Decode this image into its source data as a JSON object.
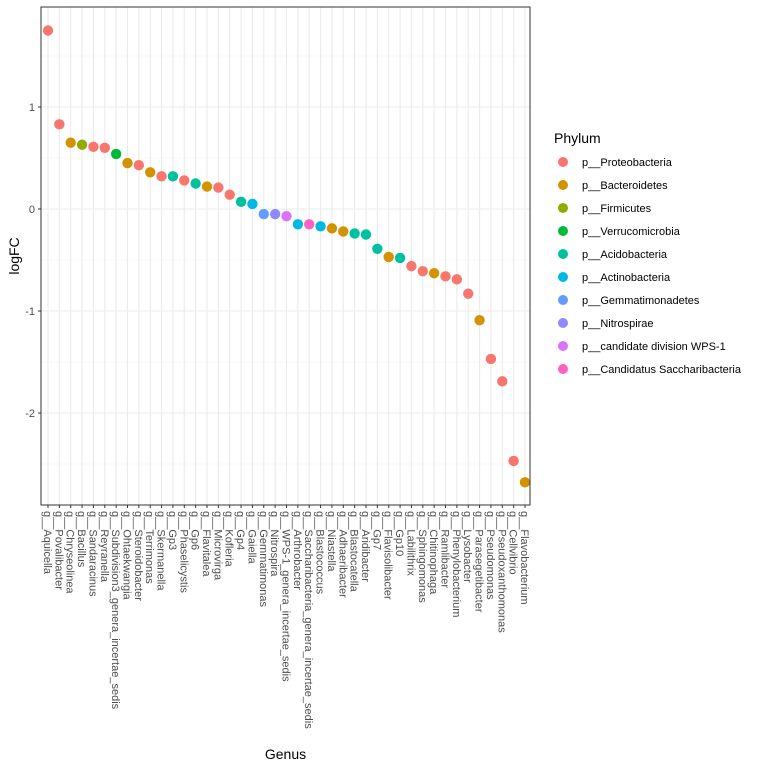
{
  "chart_data": {
    "type": "scatter",
    "title": "",
    "xlabel": "Genus",
    "ylabel": "logFC",
    "ylim": [
      -2.85,
      1.97
    ],
    "yticks": [
      -2,
      -1,
      0,
      1
    ],
    "grid": true,
    "legend": {
      "title": "Phylum",
      "position": "right",
      "entries": [
        {
          "label": "p__Proteobacteria",
          "color": "#F8766D"
        },
        {
          "label": "p__Bacteroidetes",
          "color": "#D39200"
        },
        {
          "label": "p__Firmicutes",
          "color": "#93AA00"
        },
        {
          "label": "p__Verrucomicrobia",
          "color": "#00BA38"
        },
        {
          "label": "p__Acidobacteria",
          "color": "#00C19F"
        },
        {
          "label": "p__Actinobacteria",
          "color": "#00B9E3"
        },
        {
          "label": "p__Gemmatimonadetes",
          "color": "#619CFF"
        },
        {
          "label": "p__Nitrospirae",
          "color": "#8F8AFF"
        },
        {
          "label": "p__candidate division WPS-1",
          "color": "#DB72FB"
        },
        {
          "label": "p__Candidatus Saccharibacteria",
          "color": "#FF61C3"
        }
      ]
    },
    "points": [
      {
        "genus": "g__Aquicella",
        "logFC": 1.75,
        "phylum": "p__Proteobacteria"
      },
      {
        "genus": "g__Povalibacter",
        "logFC": 0.83,
        "phylum": "p__Proteobacteria"
      },
      {
        "genus": "g__Chryseolinea",
        "logFC": 0.65,
        "phylum": "p__Bacteroidetes"
      },
      {
        "genus": "g__Bacillus",
        "logFC": 0.63,
        "phylum": "p__Firmicutes"
      },
      {
        "genus": "g__Sandaracinus",
        "logFC": 0.61,
        "phylum": "p__Proteobacteria"
      },
      {
        "genus": "g__Reyranella",
        "logFC": 0.6,
        "phylum": "p__Proteobacteria"
      },
      {
        "genus": "g__Subdivision3_genera_incertae_sedis",
        "logFC": 0.54,
        "phylum": "p__Verrucomicrobia"
      },
      {
        "genus": "g__Ohtaekwangia",
        "logFC": 0.45,
        "phylum": "p__Bacteroidetes"
      },
      {
        "genus": "g__Steroidobacter",
        "logFC": 0.43,
        "phylum": "p__Proteobacteria"
      },
      {
        "genus": "g__Terrimonas",
        "logFC": 0.36,
        "phylum": "p__Bacteroidetes"
      },
      {
        "genus": "g__Skermanella",
        "logFC": 0.32,
        "phylum": "p__Proteobacteria"
      },
      {
        "genus": "g__Gp3",
        "logFC": 0.32,
        "phylum": "p__Acidobacteria"
      },
      {
        "genus": "g__Phaselicystis",
        "logFC": 0.28,
        "phylum": "p__Proteobacteria"
      },
      {
        "genus": "g__Gp6",
        "logFC": 0.25,
        "phylum": "p__Acidobacteria"
      },
      {
        "genus": "g__Flavitalea",
        "logFC": 0.22,
        "phylum": "p__Bacteroidetes"
      },
      {
        "genus": "g__Microvirga",
        "logFC": 0.21,
        "phylum": "p__Proteobacteria"
      },
      {
        "genus": "g__Kofleria",
        "logFC": 0.14,
        "phylum": "p__Proteobacteria"
      },
      {
        "genus": "g__Gp4",
        "logFC": 0.07,
        "phylum": "p__Acidobacteria"
      },
      {
        "genus": "g__Gaiella",
        "logFC": 0.05,
        "phylum": "p__Actinobacteria"
      },
      {
        "genus": "g__Gemmatimonas",
        "logFC": -0.05,
        "phylum": "p__Gemmatimonadetes"
      },
      {
        "genus": "g__Nitrospira",
        "logFC": -0.05,
        "phylum": "p__Nitrospirae"
      },
      {
        "genus": "g__WPS-1_genera_incertae_sedis",
        "logFC": -0.07,
        "phylum": "p__candidate division WPS-1"
      },
      {
        "genus": "g__Arthrobacter",
        "logFC": -0.15,
        "phylum": "p__Actinobacteria"
      },
      {
        "genus": "g__Saccharibacteria_genera_incertae_sedis",
        "logFC": -0.15,
        "phylum": "p__Candidatus Saccharibacteria"
      },
      {
        "genus": "g__Blastococcus",
        "logFC": -0.17,
        "phylum": "p__Actinobacteria"
      },
      {
        "genus": "g__Niastella",
        "logFC": -0.19,
        "phylum": "p__Bacteroidetes"
      },
      {
        "genus": "g__Adhaeribacter",
        "logFC": -0.22,
        "phylum": "p__Bacteroidetes"
      },
      {
        "genus": "g__Blastocatella",
        "logFC": -0.24,
        "phylum": "p__Acidobacteria"
      },
      {
        "genus": "g__Aridibacter",
        "logFC": -0.25,
        "phylum": "p__Acidobacteria"
      },
      {
        "genus": "g__Gp7",
        "logFC": -0.39,
        "phylum": "p__Acidobacteria"
      },
      {
        "genus": "g__Flavisolibacter",
        "logFC": -0.47,
        "phylum": "p__Bacteroidetes"
      },
      {
        "genus": "g__Gp10",
        "logFC": -0.48,
        "phylum": "p__Acidobacteria"
      },
      {
        "genus": "g__Labilithrix",
        "logFC": -0.56,
        "phylum": "p__Proteobacteria"
      },
      {
        "genus": "g__Sphingomonas",
        "logFC": -0.61,
        "phylum": "p__Proteobacteria"
      },
      {
        "genus": "g__Chitinophaga",
        "logFC": -0.63,
        "phylum": "p__Bacteroidetes"
      },
      {
        "genus": "g__Ramlibacter",
        "logFC": -0.66,
        "phylum": "p__Proteobacteria"
      },
      {
        "genus": "g__Phenylobacterium",
        "logFC": -0.69,
        "phylum": "p__Proteobacteria"
      },
      {
        "genus": "g__Lysobacter",
        "logFC": -0.83,
        "phylum": "p__Proteobacteria"
      },
      {
        "genus": "g__Parasegetibacter",
        "logFC": -1.09,
        "phylum": "p__Bacteroidetes"
      },
      {
        "genus": "g__Pseudomonas",
        "logFC": -1.47,
        "phylum": "p__Proteobacteria"
      },
      {
        "genus": "g__Pseudoxanthomonas",
        "logFC": -1.69,
        "phylum": "p__Proteobacteria"
      },
      {
        "genus": "g__Cellvibrio",
        "logFC": -2.47,
        "phylum": "p__Proteobacteria"
      },
      {
        "genus": "g__Flavobacterium",
        "logFC": -2.68,
        "phylum": "p__Bacteroidetes"
      }
    ]
  }
}
